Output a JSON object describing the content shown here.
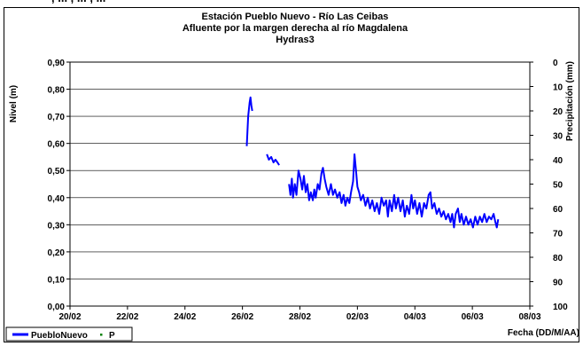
{
  "header_fragment": ", ... , ... , ...",
  "chart_data": {
    "type": "line",
    "title": [
      "Estación Pueblo Nuevo - Río Las Ceibas",
      "Afluente por la margen derecha al río Magdalena",
      "Hydras3"
    ],
    "ylabel": "Nivel (m)",
    "y2label": "Precipitación (mm)",
    "xlabel": "Fecha (DD/M/AA)",
    "ylim": [
      0,
      0.9
    ],
    "y2lim": [
      0,
      100
    ],
    "y2_inverted": true,
    "yticks": [
      "0,00",
      "0,10",
      "0,20",
      "0,30",
      "0,40",
      "0,50",
      "0,60",
      "0,70",
      "0,80",
      "0,90"
    ],
    "y2ticks": [
      "0",
      "10",
      "20",
      "30",
      "40",
      "50",
      "60",
      "70",
      "80",
      "90",
      "100"
    ],
    "xticks": [
      "20/02",
      "22/02",
      "24/02",
      "26/02",
      "28/02",
      "02/03",
      "04/03",
      "06/03",
      "08/03"
    ],
    "grid": "horizontal",
    "legend_position": "bottom-left",
    "series": [
      {
        "name": "PuebloNuevo",
        "color": "#0000ff",
        "segments": [
          [
            [
              6.15,
              0.59
            ],
            [
              6.2,
              0.7
            ],
            [
              6.25,
              0.75
            ],
            [
              6.28,
              0.77
            ],
            [
              6.31,
              0.74
            ],
            [
              6.34,
              0.72
            ]
          ],
          [
            [
              6.85,
              0.56
            ],
            [
              6.92,
              0.54
            ],
            [
              7.0,
              0.55
            ],
            [
              7.08,
              0.53
            ],
            [
              7.15,
              0.54
            ],
            [
              7.22,
              0.53
            ],
            [
              7.28,
              0.52
            ]
          ],
          [
            [
              7.62,
              0.45
            ],
            [
              7.67,
              0.41
            ],
            [
              7.72,
              0.47
            ],
            [
              7.76,
              0.4
            ],
            [
              7.82,
              0.45
            ],
            [
              7.88,
              0.41
            ],
            [
              7.95,
              0.5
            ],
            [
              8.02,
              0.47
            ],
            [
              8.08,
              0.43
            ],
            [
              8.14,
              0.48
            ],
            [
              8.2,
              0.42
            ],
            [
              8.26,
              0.45
            ],
            [
              8.32,
              0.39
            ],
            [
              8.38,
              0.42
            ],
            [
              8.45,
              0.39
            ],
            [
              8.5,
              0.43
            ],
            [
              8.55,
              0.4
            ],
            [
              8.62,
              0.45
            ],
            [
              8.68,
              0.43
            ],
            [
              8.75,
              0.49
            ],
            [
              8.8,
              0.51
            ],
            [
              8.86,
              0.47
            ],
            [
              8.92,
              0.44
            ],
            [
              9.0,
              0.41
            ],
            [
              9.08,
              0.45
            ],
            [
              9.15,
              0.41
            ],
            [
              9.22,
              0.43
            ],
            [
              9.3,
              0.4
            ],
            [
              9.38,
              0.42
            ],
            [
              9.45,
              0.38
            ],
            [
              9.52,
              0.41
            ],
            [
              9.58,
              0.37
            ],
            [
              9.65,
              0.4
            ],
            [
              9.72,
              0.38
            ],
            [
              9.78,
              0.42
            ],
            [
              9.85,
              0.46
            ],
            [
              9.9,
              0.56
            ],
            [
              9.95,
              0.5
            ],
            [
              10.0,
              0.44
            ],
            [
              10.06,
              0.42
            ],
            [
              10.12,
              0.39
            ],
            [
              10.2,
              0.41
            ],
            [
              10.28,
              0.37
            ],
            [
              10.36,
              0.4
            ],
            [
              10.44,
              0.36
            ],
            [
              10.52,
              0.39
            ],
            [
              10.6,
              0.35
            ],
            [
              10.68,
              0.38
            ],
            [
              10.76,
              0.34
            ],
            [
              10.84,
              0.4
            ],
            [
              10.92,
              0.37
            ],
            [
              11.0,
              0.39
            ],
            [
              11.06,
              0.33
            ],
            [
              11.12,
              0.39
            ],
            [
              11.2,
              0.35
            ],
            [
              11.28,
              0.41
            ],
            [
              11.34,
              0.36
            ],
            [
              11.42,
              0.4
            ],
            [
              11.5,
              0.35
            ],
            [
              11.58,
              0.39
            ],
            [
              11.65,
              0.33
            ],
            [
              11.72,
              0.37
            ],
            [
              11.8,
              0.34
            ],
            [
              11.88,
              0.41
            ],
            [
              11.94,
              0.36
            ],
            [
              12.0,
              0.39
            ],
            [
              12.08,
              0.34
            ],
            [
              12.16,
              0.38
            ],
            [
              12.24,
              0.33
            ],
            [
              12.32,
              0.38
            ],
            [
              12.4,
              0.36
            ],
            [
              12.48,
              0.41
            ],
            [
              12.54,
              0.42
            ],
            [
              12.6,
              0.36
            ],
            [
              12.68,
              0.38
            ],
            [
              12.76,
              0.34
            ],
            [
              12.84,
              0.36
            ],
            [
              12.92,
              0.33
            ],
            [
              13.0,
              0.35
            ],
            [
              13.08,
              0.32
            ],
            [
              13.16,
              0.34
            ],
            [
              13.24,
              0.31
            ],
            [
              13.3,
              0.34
            ],
            [
              13.36,
              0.29
            ],
            [
              13.42,
              0.34
            ],
            [
              13.5,
              0.36
            ],
            [
              13.56,
              0.31
            ],
            [
              13.62,
              0.34
            ],
            [
              13.7,
              0.3
            ],
            [
              13.78,
              0.33
            ],
            [
              13.86,
              0.3
            ],
            [
              13.94,
              0.32
            ],
            [
              14.02,
              0.29
            ],
            [
              14.1,
              0.33
            ],
            [
              14.18,
              0.3
            ],
            [
              14.26,
              0.33
            ],
            [
              14.34,
              0.31
            ],
            [
              14.42,
              0.34
            ],
            [
              14.5,
              0.31
            ],
            [
              14.58,
              0.33
            ],
            [
              14.66,
              0.32
            ],
            [
              14.74,
              0.34
            ],
            [
              14.8,
              0.31
            ],
            [
              14.85,
              0.29
            ],
            [
              14.9,
              0.32
            ]
          ]
        ]
      },
      {
        "name": "P",
        "color": "#008000",
        "values": []
      }
    ]
  }
}
